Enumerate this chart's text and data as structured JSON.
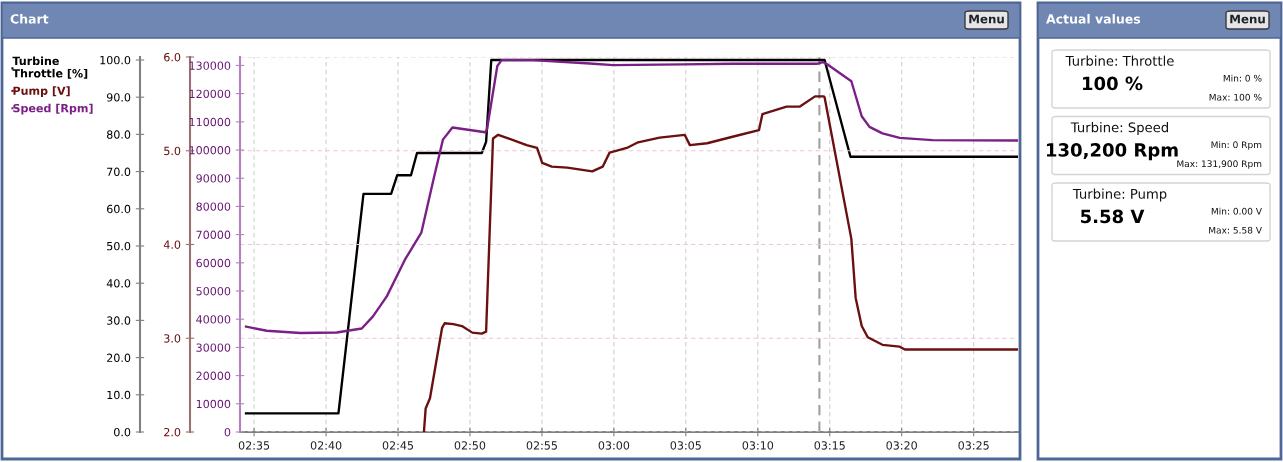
{
  "chart_data": [
    {
      "type": "line",
      "title": "Chart",
      "annotations": [
        "Menu"
      ],
      "xlim": [
        2.567,
        3.468
      ],
      "xticks": [
        {
          "value": 2.5833,
          "label": "02:35"
        },
        {
          "value": 2.6667,
          "label": "02:40"
        },
        {
          "value": 2.75,
          "label": "02:45"
        },
        {
          "value": 2.8333,
          "label": "02:50"
        },
        {
          "value": 2.9167,
          "label": "02:55"
        },
        {
          "value": 3.0,
          "label": "03:00"
        },
        {
          "value": 3.0833,
          "label": "03:05"
        },
        {
          "value": 3.1667,
          "label": "03:10"
        },
        {
          "value": 3.25,
          "label": "03:15"
        },
        {
          "value": 3.3333,
          "label": "03:20"
        },
        {
          "value": 3.4167,
          "label": "03:25"
        }
      ],
      "ylim": [
        0,
        100.8
      ],
      "yticks": [
        {
          "value": 0,
          "label": "0.0"
        },
        {
          "value": 10,
          "label": "10.0"
        },
        {
          "value": 20,
          "label": "20.0"
        },
        {
          "value": 30,
          "label": "30.0"
        },
        {
          "value": 40,
          "label": "40.0"
        },
        {
          "value": 50,
          "label": "50.0"
        },
        {
          "value": 60,
          "label": "60.0"
        },
        {
          "value": 70,
          "label": "70.0"
        },
        {
          "value": 80,
          "label": "80.0"
        },
        {
          "value": 90,
          "label": "90.0"
        },
        {
          "value": 100,
          "label": "100.0"
        }
      ],
      "y2lim": [
        2,
        6
      ],
      "y2ticks": [
        {
          "value": 2,
          "label": "2.0"
        },
        {
          "value": 3,
          "label": "3.0"
        },
        {
          "value": 4,
          "label": "4.0"
        },
        {
          "value": 5,
          "label": "5.0"
        },
        {
          "value": 6,
          "label": "6.0"
        }
      ],
      "y3lim": [
        0,
        133000
      ],
      "y3ticks": [
        0,
        10000,
        20000,
        30000,
        40000,
        50000,
        60000,
        70000,
        80000,
        90000,
        100000,
        110000,
        120000,
        130000
      ],
      "grid": true,
      "legend": "left",
      "ref_lines": [
        {
          "axis": "x",
          "value": 3.238,
          "color": "#a0a0a0",
          "line_style": "dashed"
        }
      ],
      "series": [
        {
          "name": "Turbine\nThrottle [%]",
          "color": "#000000",
          "axis": "y",
          "x": [
            2.574,
            2.681,
            2.71,
            2.742,
            2.749,
            2.765,
            2.772,
            2.847,
            2.852,
            2.858,
            3.244,
            3.274,
            3.468
          ],
          "values": [
            5,
            5,
            64,
            64,
            69,
            69,
            75,
            75,
            78,
            100,
            100,
            74,
            74
          ]
        },
        {
          "name": "Pump [V]",
          "color": "#6b1010",
          "axis": "y2",
          "x": [
            2.78,
            2.782,
            2.787,
            2.801,
            2.804,
            2.814,
            2.824,
            2.836,
            2.847,
            2.852,
            2.86,
            2.866,
            2.899,
            2.911,
            2.917,
            2.928,
            2.946,
            2.975,
            2.987,
            2.995,
            3.015,
            3.028,
            3.053,
            3.082,
            3.088,
            3.108,
            3.142,
            3.168,
            3.172,
            3.2,
            3.215,
            3.233,
            3.243,
            3.244,
            3.275,
            3.28,
            3.287,
            3.294,
            3.311,
            3.331,
            3.337,
            3.468
          ],
          "values": [
            2.0,
            2.25,
            2.36,
            3.11,
            3.16,
            3.15,
            3.13,
            3.06,
            3.05,
            3.07,
            5.13,
            5.17,
            5.06,
            5.03,
            4.87,
            4.83,
            4.82,
            4.78,
            4.83,
            4.98,
            5.03,
            5.09,
            5.14,
            5.17,
            5.06,
            5.08,
            5.16,
            5.22,
            5.39,
            5.47,
            5.47,
            5.58,
            5.58,
            5.57,
            4.06,
            3.43,
            3.13,
            3.01,
            2.93,
            2.91,
            2.88,
            2.88
          ]
        },
        {
          "name": "Speed [Rpm]",
          "color": "#7a1f86",
          "axis": "y3",
          "x": [
            2.574,
            2.598,
            2.637,
            2.679,
            2.708,
            2.721,
            2.737,
            2.758,
            2.777,
            2.791,
            2.802,
            2.813,
            2.851,
            2.853,
            2.865,
            2.87,
            2.906,
            2.972,
            2.999,
            3.08,
            3.138,
            3.235,
            3.242,
            3.247,
            3.275,
            3.287,
            3.296,
            3.311,
            3.331,
            3.369,
            3.468
          ],
          "values": [
            37400,
            35900,
            35100,
            35300,
            36700,
            41000,
            48100,
            61100,
            70700,
            89500,
            103700,
            108000,
            106300,
            107300,
            129800,
            131900,
            131900,
            130700,
            130100,
            130400,
            130600,
            130600,
            131200,
            130400,
            124400,
            112000,
            108200,
            105900,
            104300,
            103500,
            103400
          ]
        }
      ]
    },
    {
      "type": "other",
      "title": "Actual values",
      "annotations": [
        "Menu",
        "Turbine: Throttle",
        "100 %",
        "Min: 0 %",
        "Max: 100 %",
        "Turbine: Speed",
        "130,200 Rpm",
        "Min: 0 Rpm",
        "Max: 131,900 Rpm",
        "Turbine: Pump",
        "5.58 V",
        "Min: 0.00 V",
        "Max: 5.58 V"
      ]
    }
  ]
}
